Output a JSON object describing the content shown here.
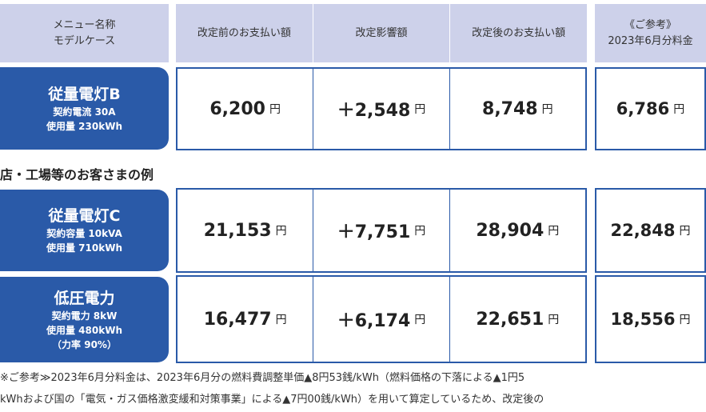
{
  "header": {
    "menu_line1": "メニュー名称",
    "menu_line2": "モデルケース",
    "col_before": "改定前のお支払い額",
    "col_impact": "改定影響額",
    "col_after": "改定後のお支払い額",
    "col_ref_line1": "《ご参考》",
    "col_ref_line2": "2023年6月分料金"
  },
  "currency": "円",
  "rows": [
    {
      "name": "従量電灯B",
      "details": [
        "契約電流 30A",
        "使用量 230kWh"
      ],
      "before": "6,200",
      "impact": "＋2,548",
      "after": "8,748",
      "ref": "6,786"
    },
    {
      "name": "従量電灯C",
      "details": [
        "契約容量 10kVA",
        "使用量 710kWh"
      ],
      "before": "21,153",
      "impact": "＋7,751",
      "after": "28,904",
      "ref": "22,848"
    },
    {
      "name": "低圧電力",
      "details": [
        "契約電力 8kW",
        "使用量 480kWh",
        "（力率 90%）"
      ],
      "before": "16,477",
      "impact": "＋6,174",
      "after": "22,651",
      "ref": "18,556"
    }
  ],
  "section_heading": "店・工場等のお客さまの例",
  "footnote": {
    "line1": "※ご参考≫2023年6月分料金は、2023年6月分の燃料費調整単価▲8円53銭/kWh（燃料価格の下落による▲1円5",
    "line2": "kWhおよび国の「電気・ガス価格激変緩和対策事業」による▲7円00銭/kWh）を用いて算定しているため、改定後の"
  },
  "colors": {
    "accent": "#2a5aa8",
    "header_bg": "#cdd1ea"
  }
}
